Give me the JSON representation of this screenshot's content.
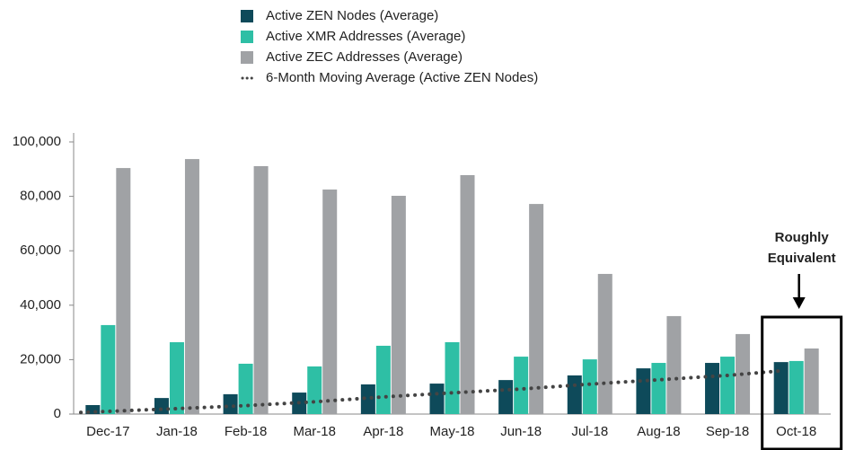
{
  "chart_data": {
    "type": "bar",
    "categories": [
      "Dec-17",
      "Jan-18",
      "Feb-18",
      "Mar-18",
      "Apr-18",
      "May-18",
      "Jun-18",
      "Jul-18",
      "Aug-18",
      "Sep-18",
      "Oct-18"
    ],
    "series": [
      {
        "name": "Active ZEN Nodes (Average)",
        "color": "#0e4a5a",
        "values": [
          3300,
          5900,
          7300,
          7900,
          10900,
          11200,
          12500,
          14200,
          16800,
          18800,
          19100
        ]
      },
      {
        "name": "Active XMR Addresses (Average)",
        "color": "#2ebfa5",
        "values": [
          32700,
          26400,
          18500,
          17500,
          25100,
          26400,
          21100,
          20100,
          18800,
          21100,
          19500
        ]
      },
      {
        "name": "Active ZEC Addresses (Average)",
        "color": "#a0a2a5",
        "values": [
          90400,
          93700,
          91100,
          82500,
          80200,
          87800,
          77200,
          51500,
          36000,
          29400,
          24100
        ]
      },
      {
        "name": "6-Month Moving Average (Active ZEN Nodes)",
        "type": "line",
        "style": "dotted",
        "color": "#444444",
        "values": [
          600,
          2000,
          3100,
          4500,
          6300,
          7800,
          9200,
          11000,
          12600,
          14200,
          15800
        ]
      }
    ],
    "ylim": [
      0,
      100000
    ],
    "yticks": [
      0,
      {
        "value": 20000,
        "label": "20,000"
      },
      {
        "value": 40000,
        "label": "40,000"
      },
      {
        "value": 60000,
        "label": "60,000"
      },
      {
        "value": 80000,
        "label": "80,000"
      },
      {
        "value": 100000,
        "label": "100,000"
      }
    ],
    "annotation": [
      "Roughly",
      "Equivalent"
    ],
    "highlight_category": "Oct-18",
    "legend": "top"
  }
}
